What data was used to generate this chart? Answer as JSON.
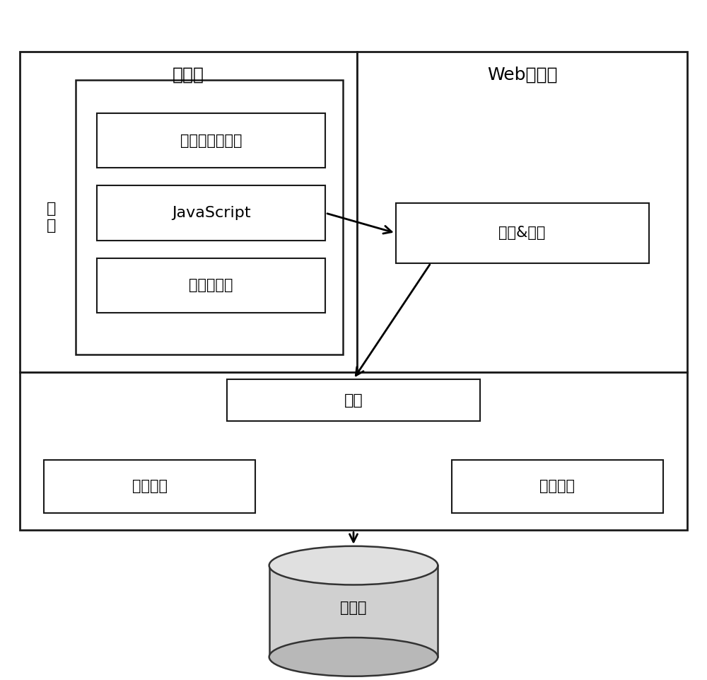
{
  "bg_color": "#ffffff",
  "labels": {
    "client": "客户端",
    "web_server": "Web服务端",
    "page": "页\n面",
    "html": "超文本标记语言",
    "javascript": "JavaScript",
    "css": "层叠样式表",
    "logic": "逻辑&代理",
    "service": "服务",
    "data_service1": "数据服务",
    "data_service2": "数据服务",
    "database": "数据库"
  },
  "colors": {
    "box_bg": "#ffffff",
    "box_border": "#1a1a1a",
    "arrow": "#000000",
    "db_fill_body": "#d0d0d0",
    "db_fill_top": "#e0e0e0",
    "db_fill_bot": "#b8b8b8",
    "db_edge": "#333333",
    "text": "#000000"
  },
  "layout": {
    "fig_w": 10.0,
    "fig_h": 9.61,
    "xlim": [
      0,
      10
    ],
    "ylim": [
      0,
      9.61
    ]
  }
}
